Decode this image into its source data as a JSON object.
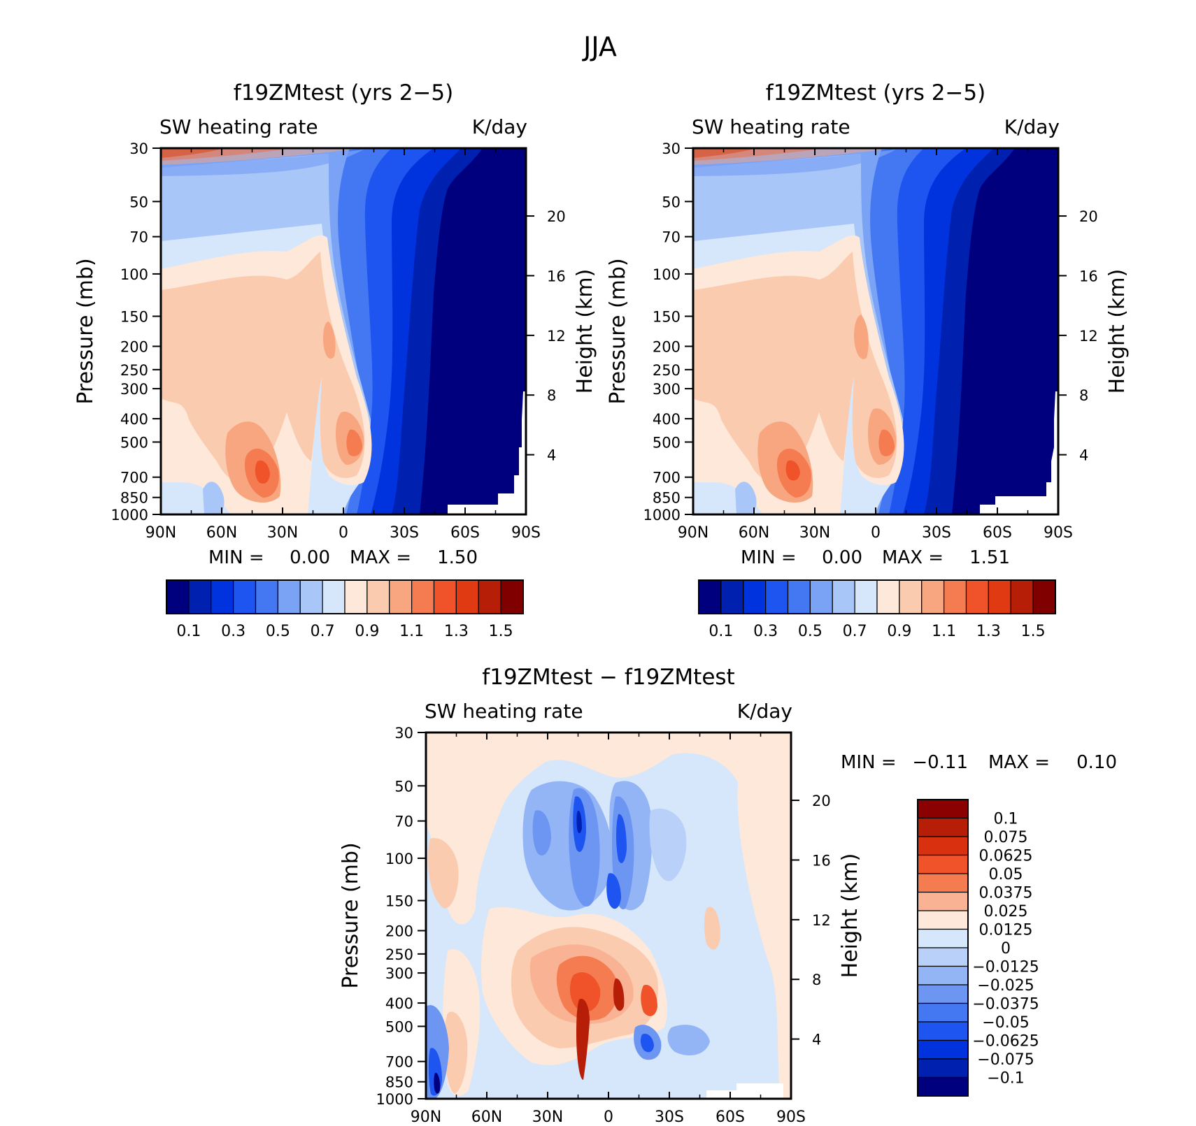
{
  "figure": {
    "title": "JJA"
  },
  "chart_data": [
    {
      "type": "heatmap",
      "title": "f19ZMtest (yrs 2−5)",
      "left_label": "SW heating rate",
      "right_label": "K/day",
      "xlabel": "",
      "ylabel": "Pressure (mb)",
      "y2label": "Height (km)",
      "xticks": [
        "90N",
        "60N",
        "30N",
        "0",
        "30S",
        "60S",
        "90S"
      ],
      "yticks": [
        "30",
        "50",
        "70",
        "100",
        "150",
        "200",
        "250",
        "300",
        "400",
        "500",
        "700",
        "850",
        "1000"
      ],
      "y2ticks": [
        "20",
        "16",
        "12",
        "8",
        "4"
      ],
      "stats": {
        "min_label": "MIN =",
        "min": "0.00",
        "max_label": "MAX =",
        "max": "1.50"
      },
      "levels": [
        "0.1",
        "0.3",
        "0.5",
        "0.7",
        "0.9",
        "1.1",
        "1.3",
        "1.5"
      ],
      "colorbar": [
        "#00007f",
        "#0020b0",
        "#0033dd",
        "#1e55f0",
        "#4478f2",
        "#7aa2f5",
        "#a9c6f9",
        "#d6e6fb",
        "#fde8d9",
        "#fbcbb0",
        "#f7a680",
        "#f47c50",
        "#f0522a",
        "#e03a12",
        "#b71e08",
        "#800000"
      ]
    },
    {
      "type": "heatmap",
      "title": "f19ZMtest (yrs 2−5)",
      "left_label": "SW heating rate",
      "right_label": "K/day",
      "xlabel": "",
      "ylabel": "Pressure (mb)",
      "y2label": "Height (km)",
      "xticks": [
        "90N",
        "60N",
        "30N",
        "0",
        "30S",
        "60S",
        "90S"
      ],
      "yticks": [
        "30",
        "50",
        "70",
        "100",
        "150",
        "200",
        "250",
        "300",
        "400",
        "500",
        "700",
        "850",
        "1000"
      ],
      "y2ticks": [
        "20",
        "16",
        "12",
        "8",
        "4"
      ],
      "stats": {
        "min_label": "MIN =",
        "min": "0.00",
        "max_label": "MAX =",
        "max": "1.51"
      },
      "levels": [
        "0.1",
        "0.3",
        "0.5",
        "0.7",
        "0.9",
        "1.1",
        "1.3",
        "1.5"
      ],
      "colorbar": [
        "#00007f",
        "#0020b0",
        "#0033dd",
        "#1e55f0",
        "#4478f2",
        "#7aa2f5",
        "#a9c6f9",
        "#d6e6fb",
        "#fde8d9",
        "#fbcbb0",
        "#f7a680",
        "#f47c50",
        "#f0522a",
        "#e03a12",
        "#b71e08",
        "#800000"
      ]
    },
    {
      "type": "heatmap",
      "title": "f19ZMtest − f19ZMtest",
      "left_label": "SW heating rate",
      "right_label": "K/day",
      "xlabel": "",
      "ylabel": "Pressure (mb)",
      "y2label": "Height (km)",
      "xticks": [
        "90N",
        "60N",
        "30N",
        "0",
        "30S",
        "60S",
        "90S"
      ],
      "yticks": [
        "30",
        "50",
        "70",
        "100",
        "150",
        "200",
        "250",
        "300",
        "400",
        "500",
        "700",
        "850",
        "1000"
      ],
      "y2ticks": [
        "20",
        "16",
        "12",
        "8",
        "4"
      ],
      "stats": {
        "min_label": "MIN =",
        "min": "−0.11",
        "max_label": "MAX =",
        "max": "0.10"
      },
      "levels": [
        "0.1",
        "0.075",
        "0.0625",
        "0.05",
        "0.0375",
        "0.025",
        "0.0125",
        "0",
        "−0.0125",
        "−0.025",
        "−0.0375",
        "−0.05",
        "−0.0625",
        "−0.075",
        "−0.1"
      ],
      "colorbar": [
        "#8b0000",
        "#b71e08",
        "#d9300f",
        "#f0522a",
        "#f47c50",
        "#f9b394",
        "#fde8d9",
        "#d6e6fb",
        "#b9d0f8",
        "#93b5f6",
        "#6d96f2",
        "#4478f2",
        "#1e55f0",
        "#0033dd",
        "#0020b0",
        "#00007f"
      ]
    }
  ]
}
